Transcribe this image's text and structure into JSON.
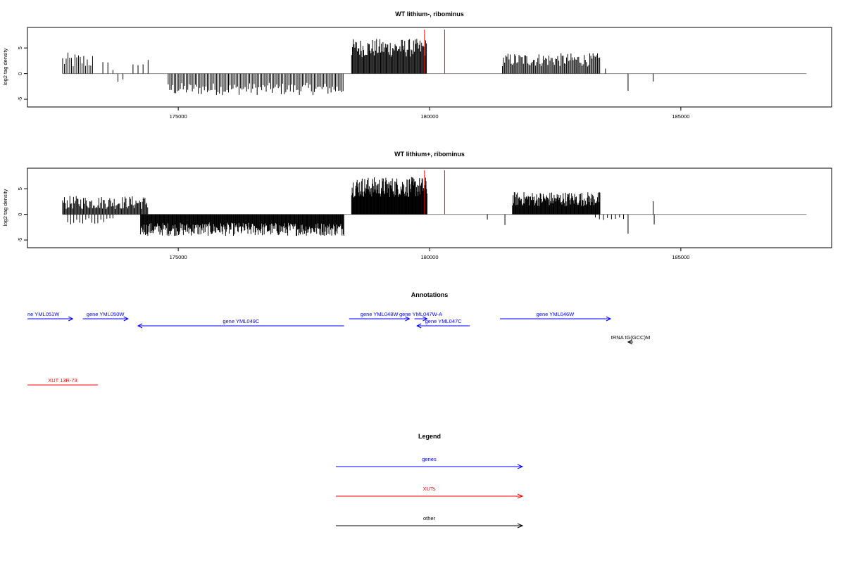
{
  "chart_data": [
    {
      "type": "bar",
      "title": "WT lithium-, ribominus",
      "ylabel": "log2 tag density",
      "xlim": [
        172000,
        188000
      ],
      "ylim": [
        -6.5,
        9
      ],
      "x_ticks": [
        175000,
        180000,
        185000
      ],
      "y_ticks": [
        -5,
        0,
        5
      ],
      "markers": [
        179900,
        180300
      ],
      "marker_color": "#ff0000",
      "baseline_end": 187500,
      "segments": [
        {
          "start": 172700,
          "end": 173300,
          "level": 2.5,
          "var": 1.6,
          "sign": 1,
          "step": 35
        },
        {
          "start": 173500,
          "end": 173700,
          "level": 1.5,
          "var": 1.0,
          "sign": 1,
          "step": 100
        },
        {
          "start": 173800,
          "end": 173900,
          "level": -1.5,
          "var": 0.8,
          "sign": -1,
          "step": 100
        },
        {
          "start": 174100,
          "end": 174400,
          "level": 2.0,
          "var": 0.8,
          "sign": 1,
          "step": 100
        },
        {
          "start": 174800,
          "end": 178300,
          "level": -3.0,
          "var": 1.2,
          "sign": -1,
          "step": 30
        },
        {
          "start": 178450,
          "end": 179950,
          "level": 5.0,
          "var": 1.8,
          "sign": 1,
          "step": 16
        },
        {
          "start": 181450,
          "end": 183400,
          "level": 2.7,
          "var": 1.3,
          "sign": 1,
          "step": 22
        },
        {
          "start": 183500,
          "end": 183550,
          "level": 1.2,
          "var": 0.3,
          "sign": 1,
          "step": 100
        },
        {
          "start": 183950,
          "end": 183960,
          "level": -3.4,
          "var": 0.1,
          "sign": -1,
          "step": 100
        },
        {
          "start": 184450,
          "end": 184460,
          "level": -1.5,
          "var": 0.1,
          "sign": -1,
          "step": 100
        }
      ]
    },
    {
      "type": "bar",
      "title": "WT lithium+, ribominus",
      "ylabel": "log2 tag density",
      "xlim": [
        172000,
        188000
      ],
      "ylim": [
        -6.5,
        9
      ],
      "x_ticks": [
        175000,
        180000,
        185000
      ],
      "y_ticks": [
        -5,
        0,
        5
      ],
      "markers": [
        179900,
        180300
      ],
      "marker_color": "#ff0000",
      "baseline_end": 187500,
      "segments": [
        {
          "start": 172700,
          "end": 174400,
          "level": 2.3,
          "var": 1.3,
          "sign": 1,
          "step": 18
        },
        {
          "start": 172800,
          "end": 173700,
          "level": -1.6,
          "var": 0.9,
          "sign": -1,
          "step": 60
        },
        {
          "start": 174250,
          "end": 178300,
          "level": -2.9,
          "var": 1.3,
          "sign": -1,
          "step": 12
        },
        {
          "start": 178450,
          "end": 179950,
          "level": 5.3,
          "var": 2.0,
          "sign": 1,
          "step": 10
        },
        {
          "start": 181150,
          "end": 181160,
          "level": -1.0,
          "var": 0.1,
          "sign": -1,
          "step": 100
        },
        {
          "start": 181500,
          "end": 181510,
          "level": -2.1,
          "var": 0.1,
          "sign": -1,
          "step": 100
        },
        {
          "start": 181650,
          "end": 183400,
          "level": 3.0,
          "var": 1.4,
          "sign": 1,
          "step": 12
        },
        {
          "start": 183300,
          "end": 183900,
          "level": -0.9,
          "var": 0.4,
          "sign": -1,
          "step": 80
        },
        {
          "start": 183950,
          "end": 183960,
          "level": -3.8,
          "var": 0.1,
          "sign": -1,
          "step": 100
        },
        {
          "start": 184450,
          "end": 184460,
          "level": 2.6,
          "var": 0.1,
          "sign": 1,
          "step": 100
        },
        {
          "start": 184470,
          "end": 184480,
          "level": -1.9,
          "var": 0.1,
          "sign": -1,
          "step": 100
        }
      ]
    }
  ],
  "annotations": {
    "title": "Annotations",
    "features": [
      {
        "label": "ne YML051W",
        "start": 172000,
        "end": 172900,
        "dir": "right",
        "color": "#0000ff",
        "row": 0
      },
      {
        "label": "gene YML050W",
        "start": 173100,
        "end": 174000,
        "dir": "right",
        "color": "#0000ff",
        "row": 0
      },
      {
        "label": "gene YML049C",
        "start": 174200,
        "end": 178300,
        "dir": "left",
        "color": "#0000ff",
        "row": 1
      },
      {
        "label": "gene YML048W",
        "start": 178400,
        "end": 179600,
        "dir": "right",
        "color": "#0000ff",
        "row": 0
      },
      {
        "label": "gene YML047W-A",
        "start": 179700,
        "end": 179950,
        "dir": "right",
        "color": "#0000ff",
        "row": 0
      },
      {
        "label": "gene YML047C",
        "start": 179750,
        "end": 180800,
        "dir": "left",
        "color": "#0000ff",
        "row": 1
      },
      {
        "label": "gene YML046W",
        "start": 181400,
        "end": 183600,
        "dir": "right",
        "color": "#0000ff",
        "row": 0
      },
      {
        "label": "tRNA tG(GCC)M",
        "start": 183950,
        "end": 184050,
        "dir": "left",
        "color": "#000000",
        "row": 2
      },
      {
        "label": "XUT 13R-73",
        "start": 172000,
        "end": 173400,
        "dir": "none",
        "color": "#ff0000",
        "row": 3
      }
    ]
  },
  "legend": {
    "title": "Legend",
    "items": [
      {
        "label": "genes",
        "color": "#0000ff"
      },
      {
        "label": "XUTs",
        "color": "#ff0000"
      },
      {
        "label": "other",
        "color": "#000000"
      }
    ]
  }
}
